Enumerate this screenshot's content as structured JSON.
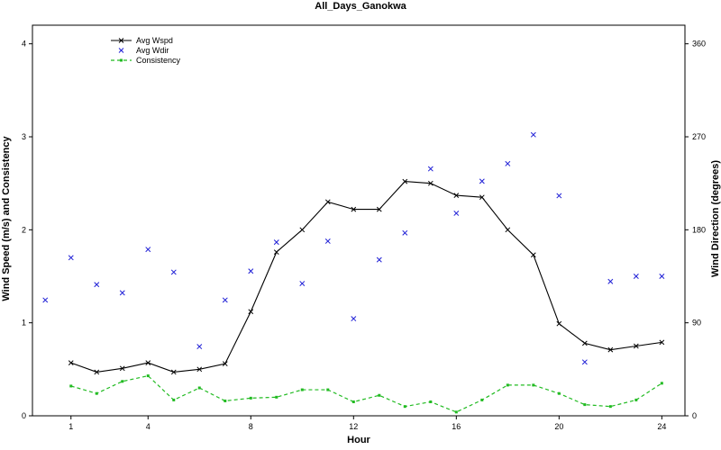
{
  "chart_data": {
    "type": "line",
    "title": "All_Days_Ganokwa",
    "xlabel": "Hour",
    "ylabel_left": "Wind Speed (m/s) and Consistency",
    "ylabel_right": "Wind Direction (degrees)",
    "x_ticks": [
      "1",
      "4",
      "8",
      "12",
      "16",
      "20",
      "24"
    ],
    "y_left_ticks": [
      "0",
      "1",
      "2",
      "3",
      "4"
    ],
    "y_right_ticks": [
      "0",
      "90",
      "180",
      "270",
      "360"
    ],
    "xlim": [
      -0.5,
      24.9
    ],
    "ylim_left": [
      0,
      4.2
    ],
    "ylim_right": [
      0,
      378
    ],
    "grid": false,
    "legend_position": "top-left",
    "legend": [
      "Avg Wspd",
      "Avg Wdir",
      "Consistency"
    ],
    "series": [
      {
        "name": "Avg Wspd",
        "axis": "left",
        "style": "line-x",
        "color": "#000000",
        "x": [
          1,
          2,
          3,
          4,
          5,
          6,
          7,
          8,
          9,
          10,
          11,
          12,
          13,
          14,
          15,
          16,
          17,
          18,
          19,
          20,
          21,
          22,
          23,
          24
        ],
        "y": [
          0.57,
          0.47,
          0.51,
          0.57,
          0.47,
          0.5,
          0.56,
          1.12,
          1.76,
          2.0,
          2.3,
          2.22,
          2.22,
          2.52,
          2.5,
          2.37,
          2.35,
          2.0,
          1.73,
          0.99,
          0.78,
          0.71,
          0.75,
          0.79
        ]
      },
      {
        "name": "Avg Wdir",
        "axis": "right",
        "style": "points-x",
        "color": "#1f1fd6",
        "x": [
          0,
          1,
          2,
          3,
          4,
          5,
          6,
          7,
          8,
          9,
          10,
          11,
          12,
          13,
          14,
          15,
          16,
          17,
          18,
          19,
          20,
          21,
          22,
          23,
          24
        ],
        "y": [
          112,
          153,
          127,
          119,
          161,
          139,
          67,
          112,
          140,
          168,
          128,
          169,
          94,
          151,
          177,
          239,
          196,
          227,
          244,
          272,
          213,
          52,
          130,
          135,
          135
        ]
      },
      {
        "name": "Consistency",
        "axis": "left",
        "style": "dashed-squares",
        "color": "#22bb22",
        "x": [
          1,
          2,
          3,
          4,
          5,
          6,
          7,
          8,
          9,
          10,
          11,
          12,
          13,
          14,
          15,
          16,
          17,
          18,
          19,
          20,
          21,
          22,
          23,
          24
        ],
        "y": [
          0.32,
          0.24,
          0.37,
          0.43,
          0.17,
          0.3,
          0.16,
          0.19,
          0.2,
          0.28,
          0.28,
          0.15,
          0.22,
          0.1,
          0.15,
          0.04,
          0.17,
          0.33,
          0.33,
          0.24,
          0.12,
          0.1,
          0.17,
          0.35
        ]
      }
    ]
  }
}
